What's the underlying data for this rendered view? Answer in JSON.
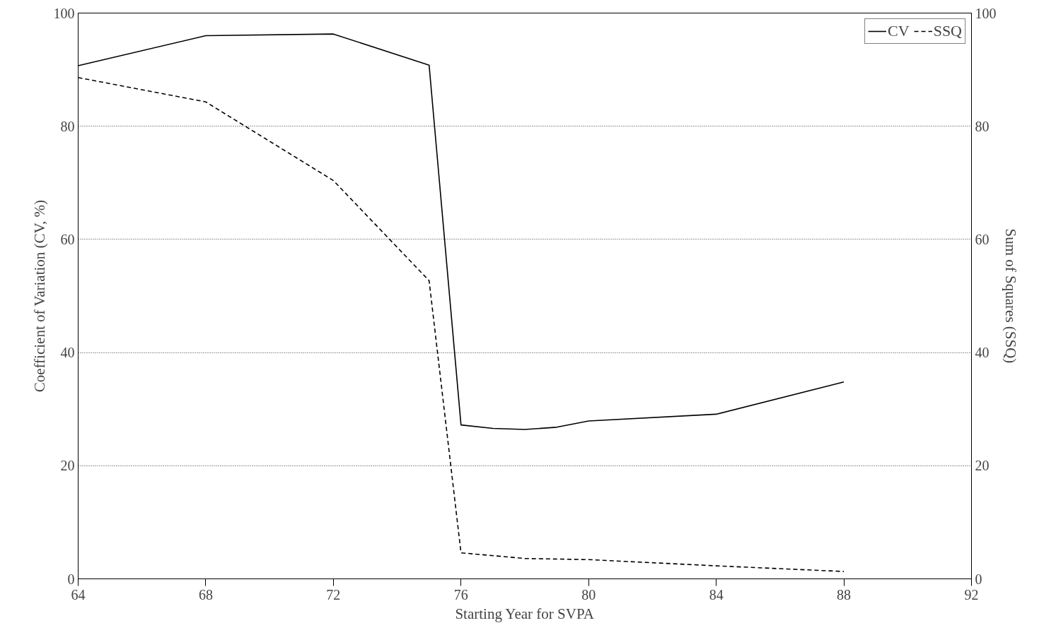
{
  "chart_data": {
    "type": "line",
    "xlabel": "Starting Year for SVPA",
    "ylabel": "Coefficient of Variation (CV, %)",
    "y2label": "Sum of Squares (SSQ)",
    "xlim": [
      64,
      92
    ],
    "xticks": [
      64,
      68,
      72,
      76,
      80,
      84,
      88,
      92
    ],
    "ylim": [
      0,
      100
    ],
    "yticks": [
      0,
      20,
      40,
      60,
      80,
      100
    ],
    "y2lim": [
      0,
      100
    ],
    "y2ticks": [
      0,
      20,
      40,
      60,
      80,
      100
    ],
    "grid": "y",
    "legend": "top right",
    "marker": "none",
    "series": [
      {
        "name": "CV",
        "color": "#000000",
        "line_style": "solid",
        "x": [
          64,
          68,
          72,
          75,
          76,
          77,
          78,
          79,
          80,
          84,
          88
        ],
        "values": [
          90.7,
          96.0,
          96.3,
          90.8,
          27.2,
          26.6,
          26.4,
          26.8,
          27.9,
          29.1,
          34.8
        ]
      },
      {
        "name": "SSQ",
        "color": "#000000",
        "line_style": "dashed",
        "axis": "y2",
        "x": [
          64,
          68,
          72,
          75,
          76,
          78,
          80,
          84,
          88
        ],
        "values": [
          88.6,
          84.3,
          70.4,
          52.7,
          4.6,
          3.6,
          3.4,
          2.3,
          1.3
        ]
      }
    ]
  }
}
